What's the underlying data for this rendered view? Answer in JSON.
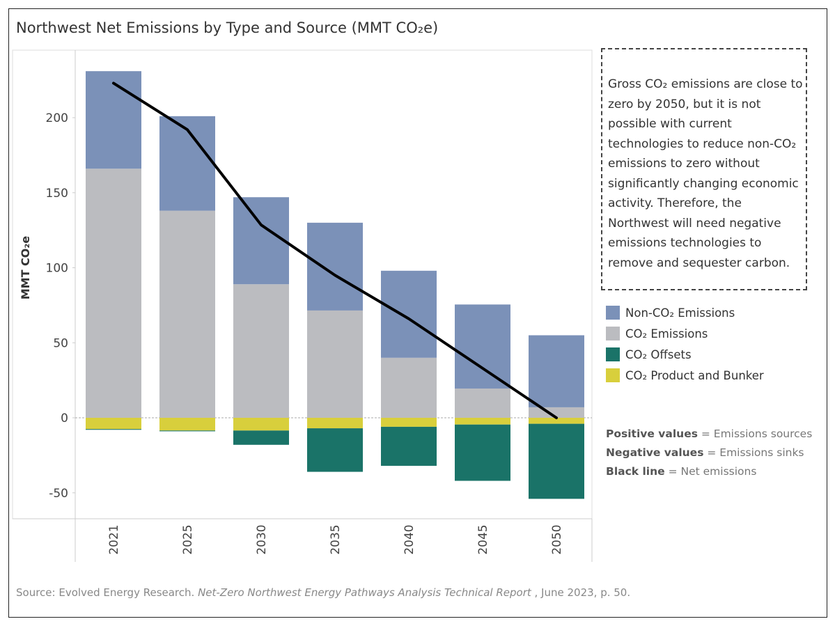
{
  "title": "Northwest Net Emissions by Type and Source (MMT CO₂e)",
  "note": "Gross CO₂ emissions are close to zero by 2050, but it is not possible with current technologies to reduce non-CO₂ emissions to zero without significantly changing economic activity. Therefore, the Northwest will need negative emissions technologies to remove and sequester carbon.",
  "keys": [
    {
      "bold": "Positive values",
      "text": " = Emissions sources"
    },
    {
      "bold": "Negative values",
      "text": " = Emissions sinks"
    },
    {
      "bold": "Black line",
      "text": " = Net emissions"
    }
  ],
  "source": {
    "prefix": "Source: Evolved Energy Research. ",
    "italic": "Net-Zero Northwest Energy Pathways Analysis Technical Report",
    "suffix": " , June 2023, p. 50."
  },
  "chart_data": {
    "type": "bar",
    "stacked": true,
    "title": "Northwest Net Emissions by Type and Source (MMT CO₂e)",
    "ylabel": "MMT CO₂e",
    "xlabel": "",
    "ylim": [
      -65,
      235
    ],
    "yticks": [
      -50,
      0,
      50,
      100,
      150,
      200
    ],
    "categories": [
      "2021",
      "2025",
      "2030",
      "2035",
      "2040",
      "2045",
      "2050"
    ],
    "series": [
      {
        "name": "Non-CO₂ Emissions",
        "color": "#7b91b8",
        "values": [
          65,
          63,
          58,
          58.5,
          58,
          56,
          48
        ]
      },
      {
        "name": "CO₂ Emissions",
        "color": "#bbbcc0",
        "values": [
          166,
          138,
          89,
          71.5,
          40,
          19.5,
          7
        ]
      },
      {
        "name": "CO₂ Offsets",
        "color": "#1a7368",
        "values": [
          -0.5,
          -0.5,
          -9.5,
          -29,
          -26,
          -37.5,
          -50
        ]
      },
      {
        "name": "CO₂ Product and Bunker",
        "color": "#d8cf3c",
        "values": [
          -7.5,
          -8.5,
          -8.5,
          -7,
          -6,
          -4.5,
          -4
        ]
      }
    ],
    "line": {
      "name": "Net emissions",
      "color": "#000000",
      "values": [
        223,
        192,
        128.5,
        95,
        66,
        33,
        0
      ]
    },
    "grid": false,
    "legend": "right"
  }
}
